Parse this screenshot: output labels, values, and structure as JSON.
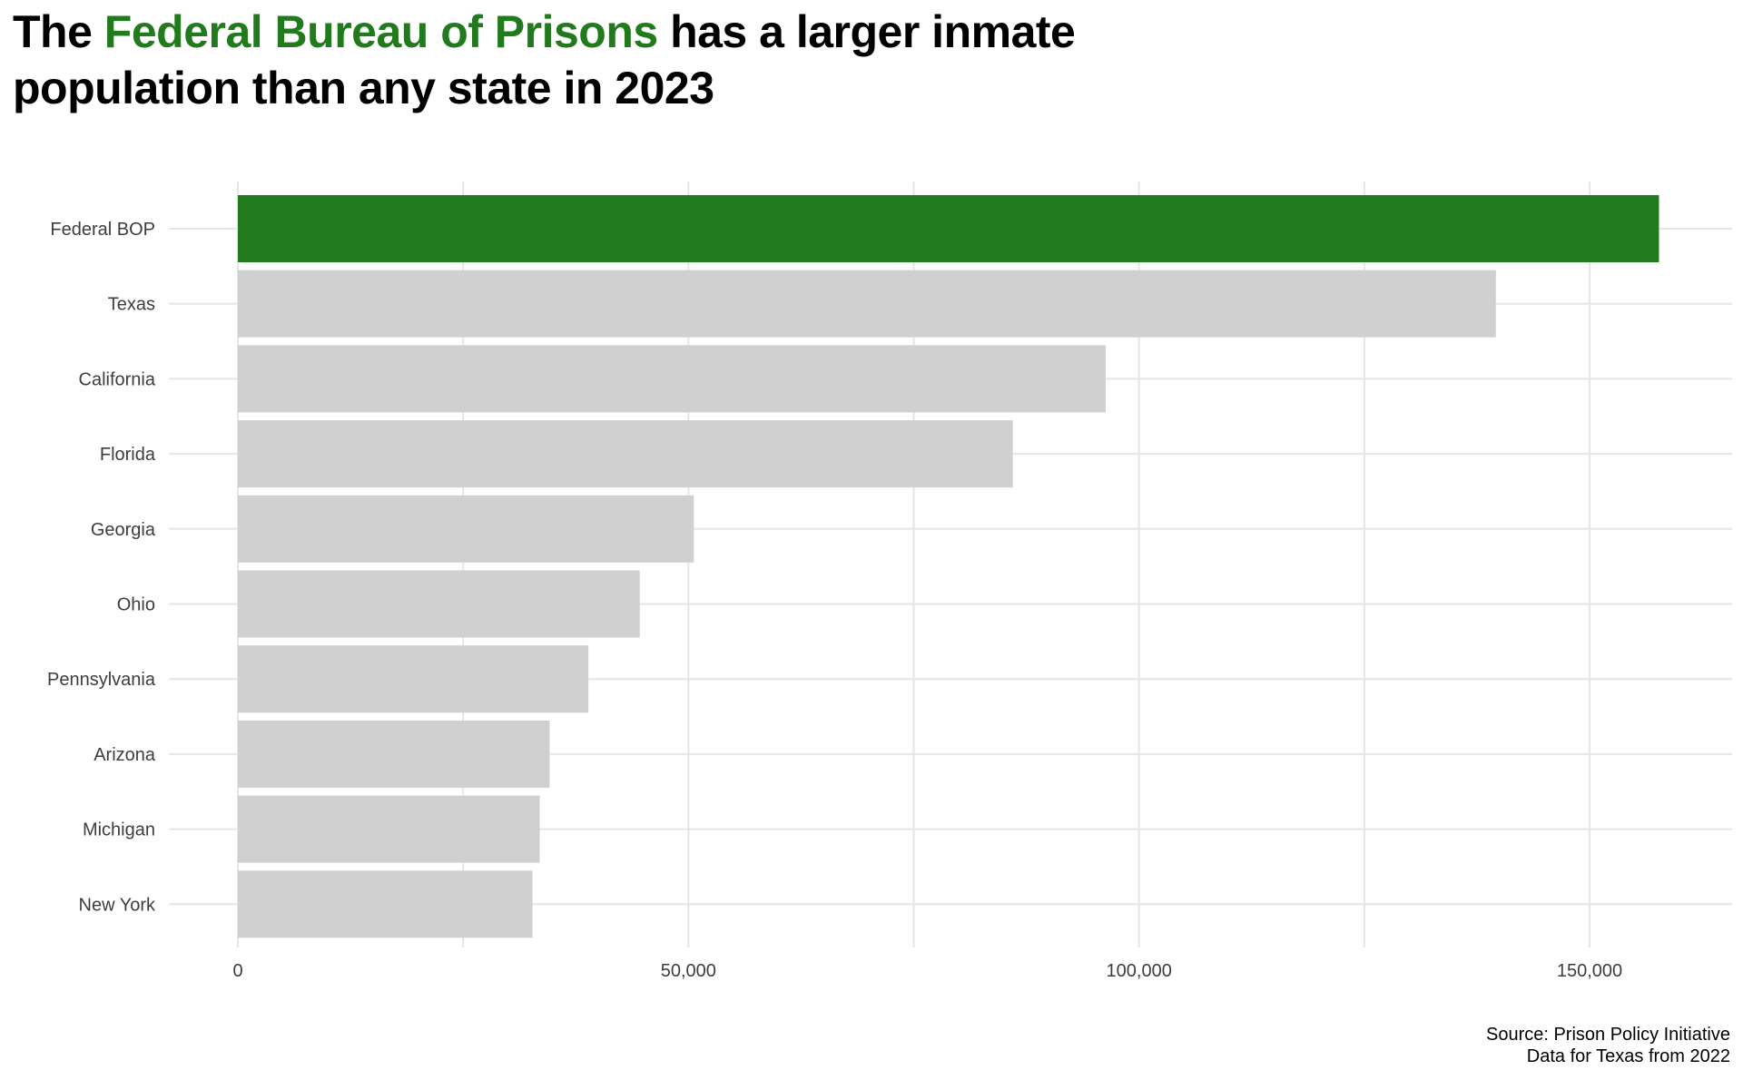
{
  "title": {
    "prefix": "The ",
    "highlight": "Federal Bureau of Prisons",
    "suffix": " has a larger inmate population than any state in 2023"
  },
  "caption": {
    "line1": "Source: Prison Policy Initiative",
    "line2": "Data for Texas from 2022"
  },
  "colors": {
    "highlight": "#217b1d",
    "bar_default": "#d0d0d0",
    "grid": "#e6e6e6",
    "axis_text": "#3d3d3d"
  },
  "chart_data": {
    "type": "bar",
    "orientation": "horizontal",
    "title": "The Federal Bureau of Prisons has a larger inmate population than any state in 2023",
    "xlabel": "",
    "ylabel": "",
    "xlim": [
      0,
      165000
    ],
    "x_ticks": [
      0,
      50000,
      100000,
      150000
    ],
    "x_tick_labels": [
      "0",
      "50,000",
      "100,000",
      "150,000"
    ],
    "grid": true,
    "highlight_category": "Federal BOP",
    "categories": [
      "Federal BOP",
      "Texas",
      "California",
      "Florida",
      "Georgia",
      "Ohio",
      "Pennsylvania",
      "Arizona",
      "Michigan",
      "New York"
    ],
    "values": [
      157700,
      139600,
      96300,
      86000,
      50600,
      44600,
      38900,
      34600,
      33500,
      32700
    ]
  }
}
